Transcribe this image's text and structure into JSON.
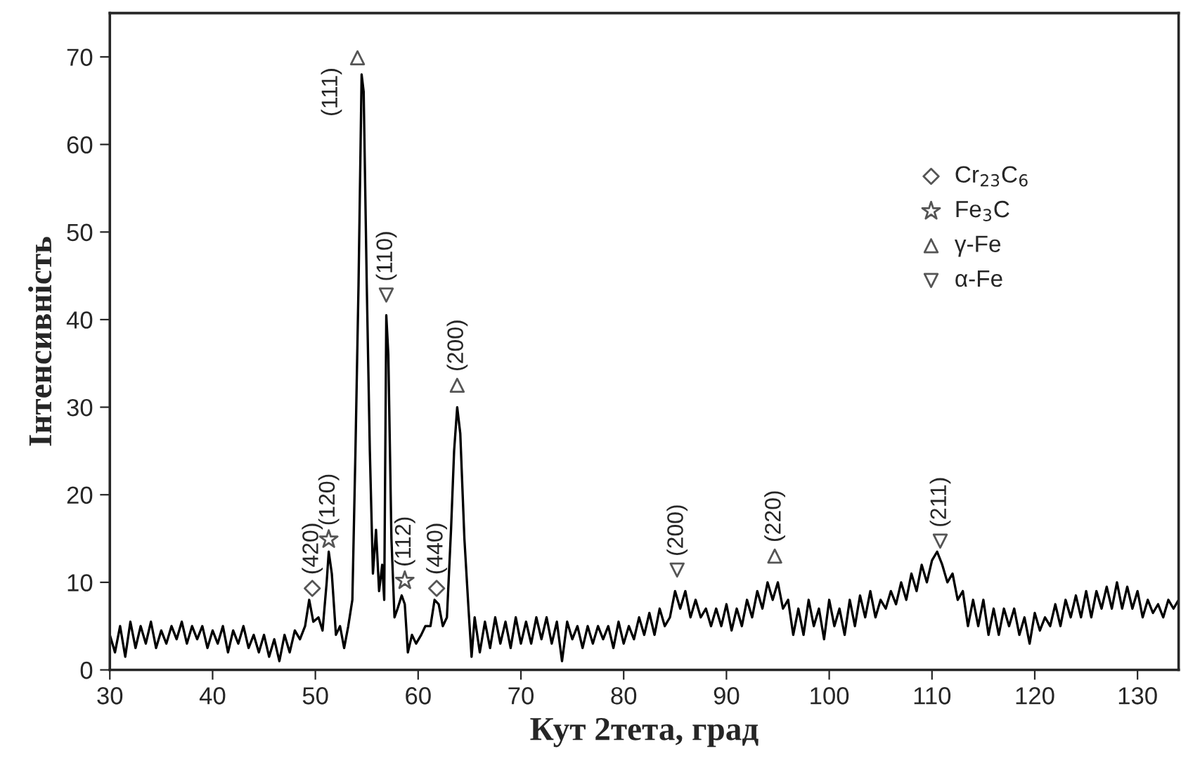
{
  "chart_data": {
    "type": "line",
    "xlabel": "Кут 2тета, град",
    "ylabel": "Інтенсивність",
    "xlim": [
      30,
      134
    ],
    "xticks": [
      30,
      40,
      50,
      60,
      70,
      80,
      90,
      100,
      110,
      120,
      130
    ],
    "ylim": [
      0,
      75
    ],
    "yticks": [
      0,
      10,
      20,
      30,
      40,
      50,
      60,
      70
    ],
    "grid": false,
    "legend": "top right",
    "series": [
      {
        "type": "line",
        "color": "#000000",
        "marker": "none",
        "line_style": "solid",
        "x": [
          30,
          30.5,
          31,
          31.5,
          32,
          32.5,
          33,
          33.5,
          34,
          34.5,
          35,
          35.5,
          36,
          36.5,
          37,
          37.5,
          38,
          38.5,
          39,
          39.5,
          40,
          40.5,
          41,
          41.5,
          42,
          42.5,
          43,
          43.5,
          44,
          44.5,
          45,
          45.5,
          46,
          46.5,
          47,
          47.5,
          48,
          48.5,
          49,
          49.4,
          49.8,
          50.3,
          50.7,
          51.1,
          51.3,
          51.6,
          52,
          52.4,
          52.8,
          53.2,
          53.6,
          53.9,
          54.2,
          54.5,
          54.7,
          55,
          55.3,
          55.6,
          55.9,
          56.2,
          56.5,
          56.7,
          56.9,
          57.1,
          57.4,
          57.7,
          58,
          58.4,
          58.7,
          59,
          59.4,
          59.8,
          60.3,
          60.7,
          61.2,
          61.6,
          62,
          62.4,
          62.8,
          63.2,
          63.5,
          63.8,
          64.1,
          64.5,
          64.9,
          65.2,
          65.5,
          66,
          66.5,
          67,
          67.5,
          68,
          68.5,
          69,
          69.5,
          70,
          70.5,
          71,
          71.5,
          72,
          72.5,
          73,
          73.5,
          74,
          74.5,
          75,
          75.5,
          76,
          76.5,
          77,
          77.5,
          78,
          78.5,
          79,
          79.5,
          80,
          80.5,
          81,
          81.5,
          82,
          82.5,
          83,
          83.5,
          84,
          84.5,
          85,
          85.5,
          86,
          86.5,
          87,
          87.5,
          88,
          88.5,
          89,
          89.5,
          90,
          90.5,
          91,
          91.5,
          92,
          92.5,
          93,
          93.5,
          94,
          94.5,
          95,
          95.5,
          96,
          96.5,
          97,
          97.5,
          98,
          98.5,
          99,
          99.5,
          100,
          100.5,
          101,
          101.5,
          102,
          102.5,
          103,
          103.5,
          104,
          104.5,
          105,
          105.5,
          106,
          106.5,
          107,
          107.5,
          108,
          108.5,
          109,
          109.5,
          110,
          110.5,
          111,
          111.5,
          112,
          112.5,
          113,
          113.5,
          114,
          114.5,
          115,
          115.5,
          116,
          116.5,
          117,
          117.5,
          118,
          118.5,
          119,
          119.5,
          120,
          120.5,
          121,
          121.5,
          122,
          122.5,
          123,
          123.5,
          124,
          124.5,
          125,
          125.5,
          126,
          126.5,
          127,
          127.5,
          128,
          128.5,
          129,
          129.5,
          130,
          130.5,
          131,
          131.5,
          132,
          132.5,
          133,
          133.5,
          134
        ],
        "values": [
          4,
          2,
          5,
          1.5,
          5.5,
          2.5,
          5,
          3,
          5.5,
          2.5,
          4.5,
          3,
          5,
          3.5,
          5.5,
          3,
          5,
          3.5,
          5,
          2.5,
          4.5,
          3,
          5,
          2,
          4.5,
          3,
          5,
          2.5,
          4,
          2,
          4,
          1.5,
          3.5,
          1,
          4,
          2,
          4.5,
          3.5,
          5,
          8,
          5.5,
          6,
          4.5,
          10,
          13.5,
          11,
          4,
          5,
          2.5,
          5,
          8,
          25,
          44,
          68,
          66,
          44,
          25,
          11,
          16,
          9,
          12,
          8,
          40.5,
          36,
          15,
          6,
          7,
          8.5,
          7.5,
          2,
          4,
          3,
          4,
          5,
          5,
          8,
          7.5,
          5,
          6,
          16,
          25,
          30,
          27,
          15,
          7,
          1.5,
          6,
          2,
          5.5,
          2.5,
          6,
          3,
          5.5,
          2.5,
          6,
          3,
          5.5,
          3,
          6,
          3.5,
          6,
          3,
          5.5,
          1,
          5.5,
          3.5,
          5,
          2.5,
          5,
          3,
          5,
          3.5,
          5,
          2.5,
          5.5,
          3,
          5,
          3.5,
          6,
          4,
          6.5,
          4,
          7,
          5,
          6,
          9,
          7,
          9,
          6,
          8,
          6,
          7,
          5,
          7,
          5,
          7.5,
          4.5,
          7,
          5,
          8,
          6,
          9,
          7,
          10,
          8,
          10,
          7,
          8,
          4,
          7,
          4,
          8,
          5,
          7,
          3.5,
          8,
          5,
          7,
          4,
          8,
          5,
          8.5,
          6,
          9,
          6,
          8,
          7,
          9,
          7.5,
          10,
          8,
          11,
          9,
          12,
          10,
          12.5,
          13.5,
          12,
          10,
          11,
          8,
          9,
          5,
          8,
          5,
          8,
          4,
          7,
          4,
          7,
          5,
          7,
          4,
          6,
          3,
          6.5,
          4.5,
          6,
          5,
          7.5,
          5,
          8,
          6,
          8.5,
          6,
          9,
          6,
          9,
          7,
          9.5,
          7,
          10,
          7,
          9.5,
          7,
          9,
          6,
          8,
          6.5,
          7.5,
          6,
          8,
          7,
          8
        ]
      },
      {
        "type": "scatter",
        "name": "Cr$_{23}$C$_{6}$",
        "color": "#555555",
        "marker": "diamond",
        "x": [
          49.7,
          61.8
        ],
        "values": [
          9.3,
          9.3
        ]
      },
      {
        "type": "scatter",
        "name": "Fe$_{3}$C",
        "color": "#555555",
        "marker": "star",
        "x": [
          51.3,
          58.7
        ],
        "values": [
          14.9,
          10.2
        ]
      },
      {
        "type": "scatter",
        "name": "γ-Fe",
        "color": "#555555",
        "marker": "triangle",
        "x": [
          54.1,
          63.8,
          94.7
        ],
        "values": [
          69.9,
          32.5,
          13.0
        ]
      },
      {
        "type": "scatter",
        "name": "α-Fe",
        "color": "#555555",
        "marker": "triangle_down",
        "x": [
          56.9,
          85.2,
          110.8
        ],
        "values": [
          42.8,
          11.4,
          14.7
        ]
      }
    ],
    "annotations": [
      {
        "text": "(420)",
        "x": 49.7,
        "y": 9.3
      },
      {
        "text": "(120)",
        "x": 51.3,
        "y": 14.9
      },
      {
        "text": "(111)",
        "x": 54.1,
        "y": 69.9
      },
      {
        "text": "(110)",
        "x": 56.9,
        "y": 42.8
      },
      {
        "text": "(112)",
        "x": 58.7,
        "y": 10.2
      },
      {
        "text": "(440)",
        "x": 61.8,
        "y": 9.3
      },
      {
        "text": "(200)",
        "x": 63.8,
        "y": 32.5
      },
      {
        "text": "(200)",
        "x": 85.2,
        "y": 11.4
      },
      {
        "text": "(220)",
        "x": 94.7,
        "y": 13.0
      },
      {
        "text": "(211)",
        "x": 110.8,
        "y": 14.7
      }
    ]
  }
}
